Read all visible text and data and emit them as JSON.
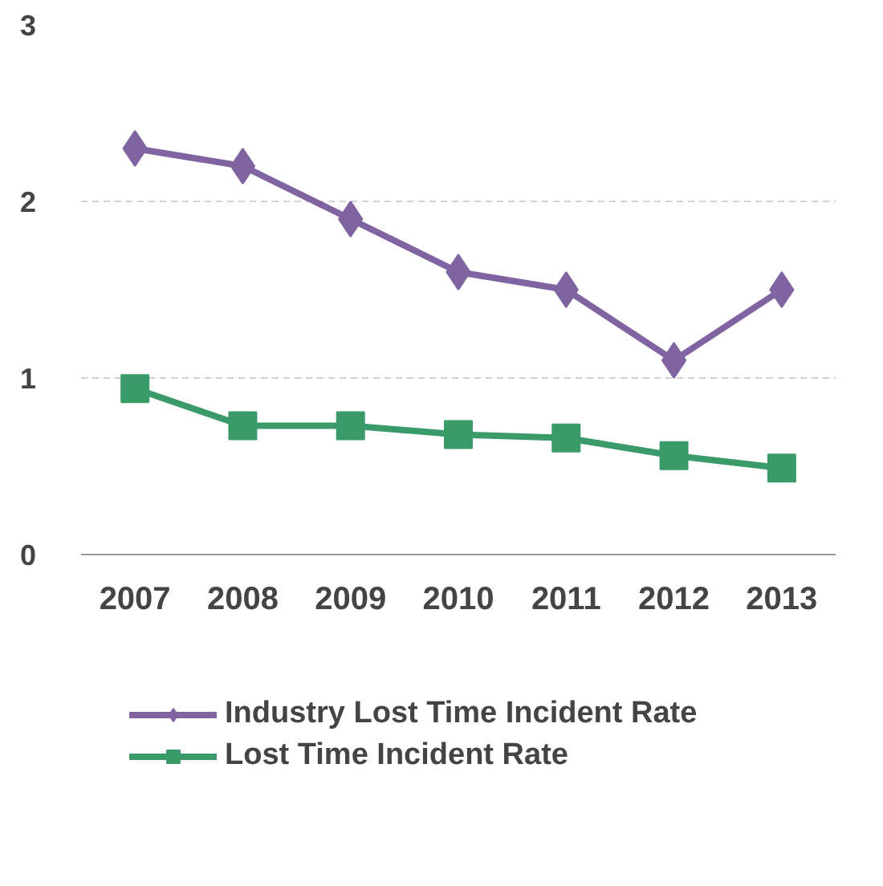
{
  "chart_data": {
    "type": "line",
    "categories": [
      "2007",
      "2008",
      "2009",
      "2010",
      "2011",
      "2012",
      "2013"
    ],
    "series": [
      {
        "name": "Industry Lost Time Incident Rate",
        "color": "#8064a2",
        "marker": "diamond",
        "values": [
          2.3,
          2.2,
          1.9,
          1.6,
          1.5,
          1.1,
          1.5
        ]
      },
      {
        "name": "Lost Time Incident Rate",
        "color": "#3a9a6a",
        "marker": "square",
        "values": [
          0.94,
          0.73,
          0.73,
          0.68,
          0.66,
          0.56,
          0.49
        ]
      }
    ],
    "ylim": [
      0,
      3
    ],
    "yticks": [
      0,
      1,
      2,
      3
    ],
    "grid": "y",
    "legend": "bottom",
    "line_style": "solid"
  }
}
